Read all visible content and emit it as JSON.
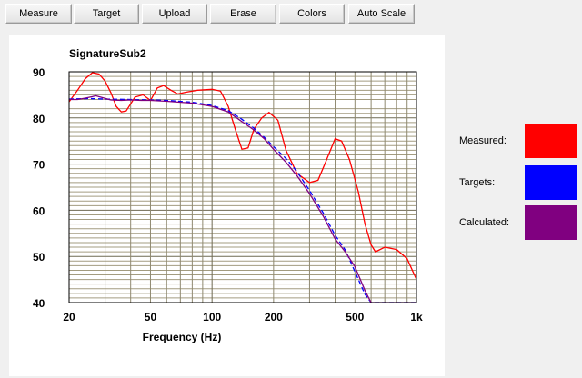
{
  "toolbar": {
    "buttons": [
      "Measure",
      "Target",
      "Upload",
      "Erase",
      "Colors",
      "Auto Scale"
    ]
  },
  "legend": {
    "measured_label": "Measured:",
    "targets_label": "Targets:",
    "calculated_label": "Calculated:",
    "measured_color": "#ff0000",
    "targets_color": "#0000ff",
    "calculated_color": "#800080"
  },
  "chart_data": {
    "type": "line",
    "title": "SignatureSub2",
    "xlabel": "Frequency (Hz)",
    "ylabel": "",
    "x_scale": "log",
    "xlim": [
      20,
      1000
    ],
    "ylim": [
      40,
      90
    ],
    "grid": true,
    "x_ticks": [
      20,
      50,
      100,
      200,
      500,
      1000
    ],
    "x_tick_labels": [
      "20",
      "50",
      "100",
      "200",
      "500",
      "1k"
    ],
    "y_ticks": [
      40,
      50,
      60,
      70,
      80,
      90
    ],
    "y_tick_labels": [
      "40",
      "50",
      "60",
      "70",
      "80",
      "90"
    ],
    "series": [
      {
        "name": "Measured",
        "color": "#ff0000",
        "x": [
          20,
          22,
          24,
          26,
          28,
          30,
          32,
          34,
          36,
          38,
          42,
          46,
          50,
          54,
          58,
          63,
          68,
          75,
          85,
          100,
          110,
          120,
          130,
          140,
          150,
          160,
          175,
          190,
          210,
          230,
          260,
          300,
          330,
          360,
          400,
          430,
          470,
          520,
          560,
          600,
          630,
          700,
          800,
          900,
          1000
        ],
        "y": [
          83.5,
          86,
          88.5,
          89.8,
          89.5,
          88,
          85.5,
          82.5,
          81.3,
          81.5,
          84.5,
          85,
          83.8,
          86.5,
          87,
          86,
          85.2,
          85.6,
          86,
          86.2,
          85.8,
          82.5,
          77.5,
          73.2,
          73.5,
          77.5,
          80,
          81.2,
          79.5,
          73,
          68,
          66,
          66.5,
          70.5,
          75.5,
          75,
          71,
          64,
          57,
          52.5,
          51,
          52,
          51.5,
          49.5,
          45
        ]
      },
      {
        "name": "Targets",
        "color": "#0000ff",
        "x": [
          20,
          25,
          30,
          40,
          50,
          60,
          80,
          100,
          120,
          140,
          160,
          180,
          200,
          230,
          260,
          300,
          350,
          400,
          450,
          500,
          560,
          600,
          650,
          700,
          800,
          900,
          1000
        ],
        "y": [
          84.1,
          84.2,
          84.1,
          84,
          83.9,
          83.8,
          83.4,
          82.7,
          81.6,
          79.7,
          77.8,
          75.8,
          73.8,
          71.2,
          68.4,
          64.3,
          59.4,
          54.6,
          51.3,
          46.7,
          41.8,
          40,
          40,
          40,
          40,
          40,
          40
        ]
      },
      {
        "name": "Calculated",
        "color": "#800080",
        "x": [
          20,
          22,
          24,
          26,
          27,
          29,
          32,
          36,
          40,
          45,
          50,
          60,
          80,
          100,
          120,
          140,
          160,
          180,
          200,
          230,
          260,
          300,
          350,
          400,
          450,
          500,
          560,
          600,
          650,
          700,
          800,
          900,
          1000
        ],
        "y": [
          84,
          84,
          84.3,
          84.6,
          84.8,
          84.4,
          83.9,
          83.8,
          83.9,
          83.8,
          83.8,
          83.6,
          83.2,
          82.5,
          81.3,
          79.2,
          77.4,
          75.5,
          73.2,
          70.4,
          67.5,
          63.6,
          58.7,
          53.8,
          50.9,
          47.8,
          42.6,
          40,
          40,
          40,
          40,
          40,
          40
        ]
      }
    ]
  }
}
